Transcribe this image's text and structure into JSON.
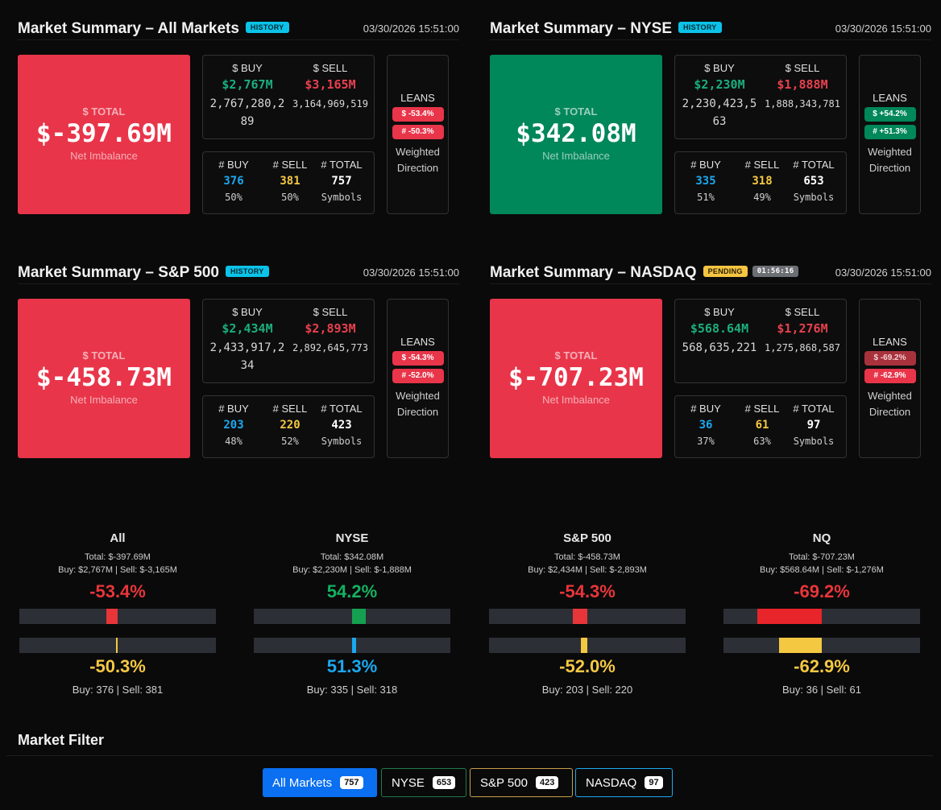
{
  "summaries": [
    {
      "title": "Market Summary – All Markets",
      "badge": "HISTORY",
      "timer": "",
      "timestamp": "03/30/2026 15:51:00",
      "total_label": "$ TOTAL",
      "total_value": "$-397.69M",
      "total_sub": "Net Imbalance",
      "buy_label": "$ BUY",
      "sell_label": "$ SELL",
      "buy_short": "$2,767M",
      "sell_short": "$3,165M",
      "buy_raw": "2,767,280,289",
      "sell_raw": "3,164,969,519",
      "count_buy_label": "# BUY",
      "count_sell_label": "# SELL",
      "count_total_label": "# TOTAL",
      "count_buy": "376",
      "count_sell": "381",
      "count_total": "757",
      "pct_buy": "50%",
      "pct_sell": "50%",
      "symbols": "Symbols",
      "leans_title": "LEANS",
      "lean_dollar": "$ -53.4%",
      "lean_count": "# -50.3%",
      "leans_foot_1": "Weighted",
      "leans_foot_2": "Direction"
    },
    {
      "title": "Market Summary – NYSE",
      "badge": "HISTORY",
      "timer": "",
      "timestamp": "03/30/2026 15:51:00",
      "total_label": "$ TOTAL",
      "total_value": "$342.08M",
      "total_sub": "Net Imbalance",
      "buy_label": "$ BUY",
      "sell_label": "$ SELL",
      "buy_short": "$2,230M",
      "sell_short": "$1,888M",
      "buy_raw": "2,230,423,563",
      "sell_raw": "1,888,343,781",
      "count_buy_label": "# BUY",
      "count_sell_label": "# SELL",
      "count_total_label": "# TOTAL",
      "count_buy": "335",
      "count_sell": "318",
      "count_total": "653",
      "pct_buy": "51%",
      "pct_sell": "49%",
      "symbols": "Symbols",
      "leans_title": "LEANS",
      "lean_dollar": "$ +54.2%",
      "lean_count": "# +51.3%",
      "leans_foot_1": "Weighted",
      "leans_foot_2": "Direction"
    },
    {
      "title": "Market Summary – S&P 500",
      "badge": "HISTORY",
      "timer": "",
      "timestamp": "03/30/2026 15:51:00",
      "total_label": "$ TOTAL",
      "total_value": "$-458.73M",
      "total_sub": "Net Imbalance",
      "buy_label": "$ BUY",
      "sell_label": "$ SELL",
      "buy_short": "$2,434M",
      "sell_short": "$2,893M",
      "buy_raw": "2,433,917,234",
      "sell_raw": "2,892,645,773",
      "count_buy_label": "# BUY",
      "count_sell_label": "# SELL",
      "count_total_label": "# TOTAL",
      "count_buy": "203",
      "count_sell": "220",
      "count_total": "423",
      "pct_buy": "48%",
      "pct_sell": "52%",
      "symbols": "Symbols",
      "leans_title": "LEANS",
      "lean_dollar": "$ -54.3%",
      "lean_count": "# -52.0%",
      "leans_foot_1": "Weighted",
      "leans_foot_2": "Direction"
    },
    {
      "title": "Market Summary – NASDAQ",
      "badge": "PENDING",
      "timer": "01:56:16",
      "timestamp": "03/30/2026 15:51:00",
      "total_label": "$ TOTAL",
      "total_value": "$-707.23M",
      "total_sub": "Net Imbalance",
      "buy_label": "$ BUY",
      "sell_label": "$ SELL",
      "buy_short": "$568.64M",
      "sell_short": "$1,276M",
      "buy_raw": "568,635,221",
      "sell_raw": "1,275,868,587",
      "count_buy_label": "# BUY",
      "count_sell_label": "# SELL",
      "count_total_label": "# TOTAL",
      "count_buy": "36",
      "count_sell": "61",
      "count_total": "97",
      "pct_buy": "37%",
      "pct_sell": "63%",
      "symbols": "Symbols",
      "leans_title": "LEANS",
      "lean_dollar": "$ -69.2%",
      "lean_count": "# -62.9%",
      "leans_foot_1": "Weighted",
      "leans_foot_2": "Direction"
    }
  ],
  "gauges": [
    {
      "title": "All",
      "total": "Total: $-397.69M",
      "buysell": "Buy: $2,767M | Sell: $-3,165M",
      "dollar_pct": "-53.4%",
      "count_pct": "-50.3%",
      "dollar_value": -53.4,
      "count_value": -50.3,
      "foot": "Buy: 376 | Sell: 381"
    },
    {
      "title": "NYSE",
      "total": "Total: $342.08M",
      "buysell": "Buy: $2,230M | Sell: $-1,888M",
      "dollar_pct": "54.2%",
      "count_pct": "51.3%",
      "dollar_value": 54.2,
      "count_value": 51.3,
      "foot": "Buy: 335 | Sell: 318"
    },
    {
      "title": "S&P 500",
      "total": "Total: $-458.73M",
      "buysell": "Buy: $2,434M | Sell: $-2,893M",
      "dollar_pct": "-54.3%",
      "count_pct": "-52.0%",
      "dollar_value": -54.3,
      "count_value": -52.0,
      "foot": "Buy: 203 | Sell: 220"
    },
    {
      "title": "NQ",
      "total": "Total: $-707.23M",
      "buysell": "Buy: $568.64M | Sell: $-1,276M",
      "dollar_pct": "-69.2%",
      "count_pct": "-62.9%",
      "dollar_value": -69.2,
      "count_value": -62.9,
      "foot": "Buy: 36 | Sell: 61"
    }
  ],
  "filter": {
    "title": "Market Filter",
    "buttons": [
      {
        "label": "All Markets",
        "count": "757"
      },
      {
        "label": "NYSE",
        "count": "653"
      },
      {
        "label": "S&P 500",
        "count": "423"
      },
      {
        "label": "NASDAQ",
        "count": "97"
      }
    ],
    "selected": "All Markets"
  },
  "colors": {
    "negative": "#e8354a",
    "positive": "#00875a",
    "buy_count": "#1ba8f0",
    "sell_count": "#f5c842",
    "history_badge": "#0bc3e8",
    "pending_badge": "#f5c542",
    "filter_active": "#0a6ff0"
  }
}
